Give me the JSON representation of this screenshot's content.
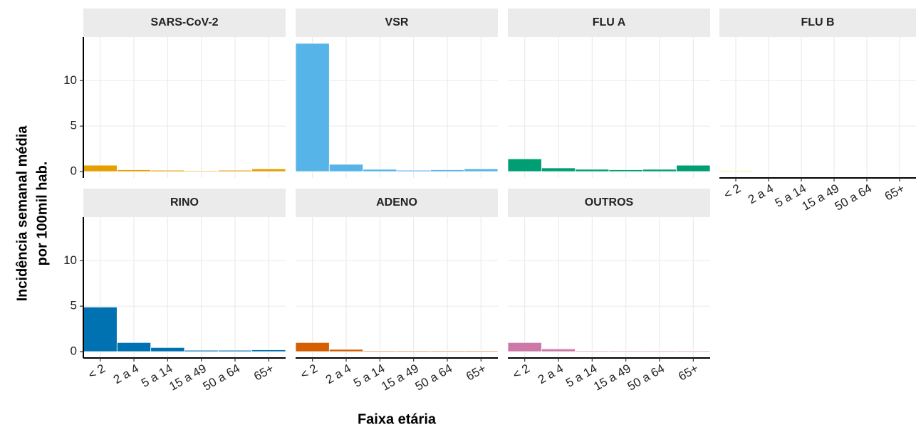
{
  "chart_data": {
    "type": "bar",
    "y_label": [
      "Incidência  semanal média",
      "por 100mil hab."
    ],
    "x_label": "Faixa etária",
    "categories": [
      "< 2",
      "2 a 4",
      "5 a 14",
      "15 a 49",
      "50 a 64",
      "65+"
    ],
    "ylim": [
      -0.7,
      14.8
    ],
    "yticks": [
      0,
      5,
      10
    ],
    "grid": true,
    "series": [
      {
        "name": "SARS-CoV-2",
        "color": "#E69F00",
        "values": [
          0.7,
          0.2,
          0.15,
          0.1,
          0.15,
          0.3
        ]
      },
      {
        "name": "VSR",
        "color": "#56B4E9",
        "values": [
          14.1,
          0.8,
          0.25,
          0.15,
          0.2,
          0.3
        ]
      },
      {
        "name": "FLU A",
        "color": "#009E73",
        "values": [
          1.4,
          0.4,
          0.25,
          0.2,
          0.25,
          0.7
        ]
      },
      {
        "name": "FLU B",
        "color": "#F0E442",
        "values": [
          0.1,
          0.05,
          0.05,
          0.05,
          0.05,
          0.05
        ]
      },
      {
        "name": "RINO",
        "color": "#0072B2",
        "values": [
          4.9,
          1.0,
          0.45,
          0.15,
          0.15,
          0.2
        ]
      },
      {
        "name": "ADENO",
        "color": "#D55E00",
        "values": [
          1.0,
          0.25,
          0.1,
          0.1,
          0.1,
          0.1
        ]
      },
      {
        "name": "OUTROS",
        "color": "#CC79A7",
        "values": [
          1.0,
          0.3,
          0.1,
          0.1,
          0.1,
          0.1
        ]
      }
    ]
  }
}
